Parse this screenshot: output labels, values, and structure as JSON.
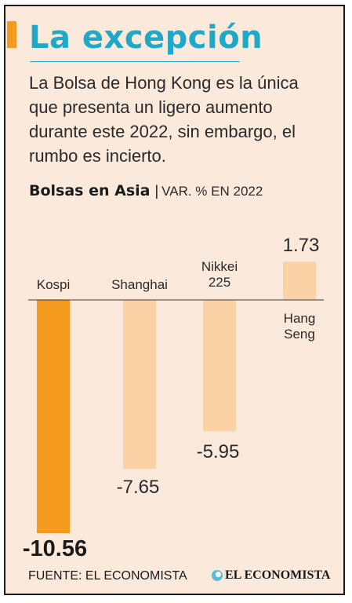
{
  "header": {
    "title": "La excepción",
    "description": "La Bolsa de Hong Kong es la única que presenta un ligero aumento durante este 2022, sin embargo, el rumbo es incierto.",
    "subtitle": "Bolsas en Asia",
    "separator": "|",
    "unit": "VAR. % EN 2022"
  },
  "chart_data": {
    "type": "bar",
    "categories": [
      "Kospi",
      "Shanghai",
      "Nikkei 225",
      "Hang Seng"
    ],
    "values": [
      -10.56,
      -7.65,
      -5.95,
      1.73
    ],
    "value_labels": [
      "-10.56",
      "-7.65",
      "-5.95",
      "1.73"
    ],
    "ylim": [
      -10.56,
      1.73
    ],
    "grid": false,
    "bar_colors": [
      "#f49a1e",
      "#fbd1a6",
      "#fbd1a6",
      "#fbd1a6"
    ]
  },
  "footer": {
    "source": "FUENTE: EL ECONOMISTA",
    "logo_text": "EL ECONOMISTA",
    "logo_icon": "el-economista-logo-icon"
  },
  "colors": {
    "background": "#fbe9db",
    "accent": "#f49a1e",
    "title": "#20a8c7",
    "bar_muted": "#fbd1a6"
  }
}
